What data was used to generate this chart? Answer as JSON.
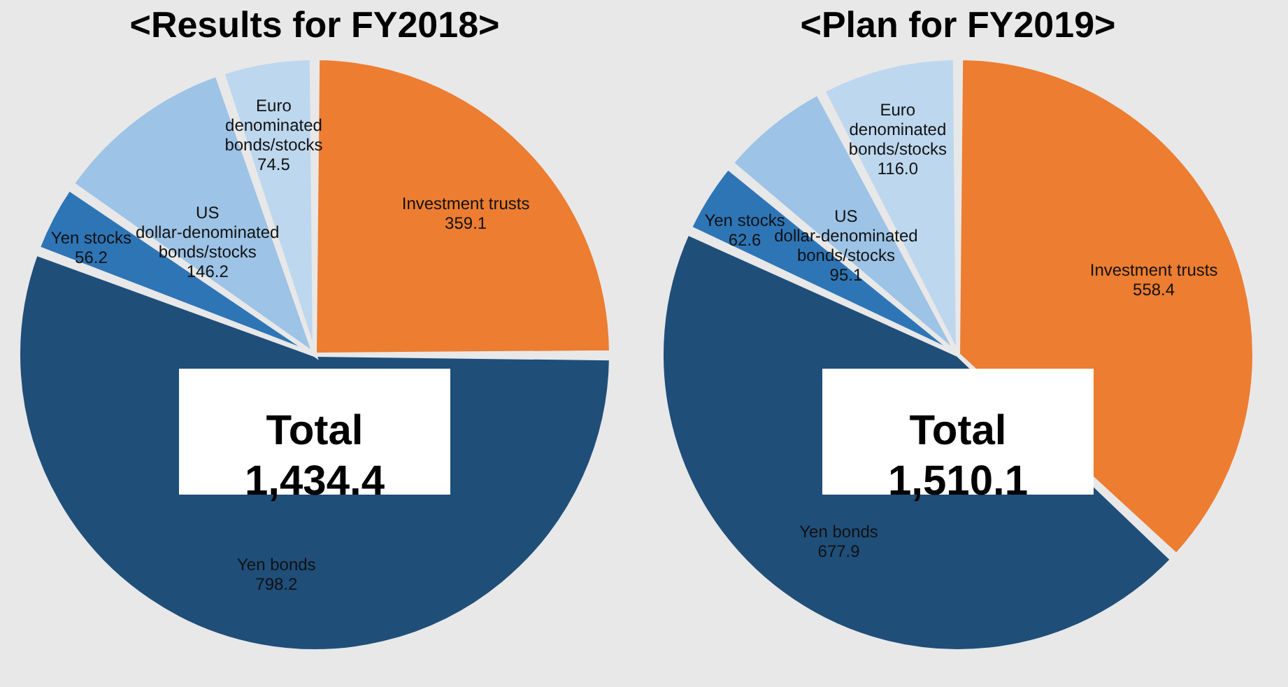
{
  "chart_data": [
    {
      "type": "pie",
      "title": "<Results for FY2018>",
      "categories": [
        "Investment trusts",
        "Yen bonds",
        "Yen stocks",
        "US dollar-denominated bonds/stocks",
        "Euro denominated bonds/stocks"
      ],
      "values": [
        359.1,
        798.2,
        56.2,
        146.2,
        74.5
      ],
      "colors": [
        "#ed7d31",
        "#1f4e79",
        "#2e75b6",
        "#9dc3e6",
        "#bdd7ee"
      ],
      "data_labels": true,
      "legend": false,
      "annotations": [
        "Total 1,434.4"
      ]
    },
    {
      "type": "pie",
      "title": "<Plan for FY2019>",
      "categories": [
        "Investment trusts",
        "Yen bonds",
        "Yen stocks",
        "US dollar-denominated bonds/stocks",
        "Euro denominated bonds/stocks"
      ],
      "values": [
        558.4,
        677.9,
        62.6,
        95.1,
        116.0
      ],
      "value_labels": [
        "558.4",
        "677.9",
        "62.6",
        "95.1",
        "116.0"
      ],
      "colors": [
        "#ed7d31",
        "#1f4e79",
        "#2e75b6",
        "#9dc3e6",
        "#bdd7ee"
      ],
      "legend": false,
      "annotations": [
        "Total 1,510.1"
      ]
    }
  ]
}
